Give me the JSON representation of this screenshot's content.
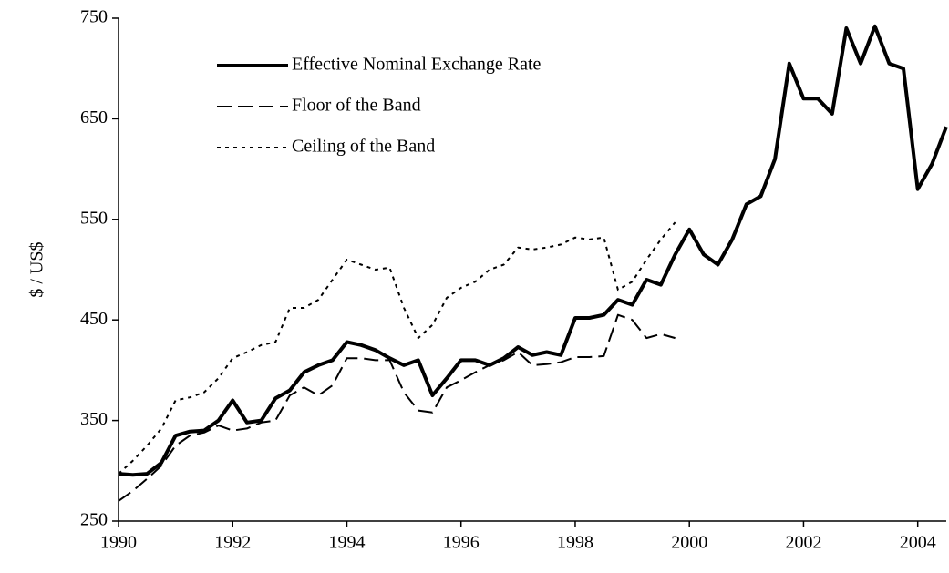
{
  "chart_data": {
    "type": "line",
    "y_label": "$ / US$",
    "x": [
      1990,
      1990.25,
      1990.5,
      1990.75,
      1991,
      1991.25,
      1991.5,
      1991.75,
      1992,
      1992.25,
      1992.5,
      1992.75,
      1993,
      1993.25,
      1993.5,
      1993.75,
      1994,
      1994.25,
      1994.5,
      1994.75,
      1995,
      1995.25,
      1995.5,
      1995.75,
      1996,
      1996.25,
      1996.5,
      1996.75,
      1997,
      1997.25,
      1997.5,
      1997.75,
      1998,
      1998.25,
      1998.5,
      1998.75,
      1999,
      1999.25,
      1999.5,
      1999.75,
      2000,
      2000.25,
      2000.5,
      2000.75,
      2001,
      2001.25,
      2001.5,
      2001.75,
      2002,
      2002.25,
      2002.5,
      2002.75,
      2003,
      2003.25,
      2003.5,
      2003.75,
      2004,
      2004.25,
      2004.5
    ],
    "series": [
      {
        "name": "Effective Nominal Exchange Rate",
        "color": "#000000",
        "style": "solid",
        "values": [
          297,
          296,
          297,
          308,
          335,
          339,
          340,
          350,
          370,
          348,
          350,
          372,
          380,
          398,
          405,
          410,
          428,
          425,
          420,
          412,
          405,
          410,
          375,
          392,
          410,
          410,
          405,
          412,
          423,
          415,
          418,
          415,
          452,
          452,
          455,
          470,
          465,
          490,
          485,
          515,
          540,
          515,
          505,
          530,
          565,
          573,
          610,
          705,
          670,
          670,
          655,
          740,
          705,
          742,
          705,
          700,
          580,
          605,
          642
        ]
      },
      {
        "name": "Floor of the Band",
        "color": "#000000",
        "style": "dashed",
        "values": [
          270,
          280,
          292,
          305,
          325,
          335,
          338,
          345,
          340,
          342,
          348,
          350,
          375,
          383,
          375,
          385,
          412,
          412,
          410,
          410,
          378,
          360,
          358,
          383,
          390,
          398,
          405,
          410,
          418,
          405,
          406,
          408,
          413,
          413,
          414,
          455,
          450,
          432,
          436,
          432,
          null,
          null,
          null,
          null,
          null,
          null,
          null,
          null,
          null,
          null,
          null,
          null,
          null,
          null,
          null,
          null,
          null,
          null,
          null
        ]
      },
      {
        "name": "Ceiling of the Band",
        "color": "#000000",
        "style": "dotted",
        "values": [
          297,
          310,
          325,
          342,
          370,
          373,
          378,
          392,
          412,
          418,
          425,
          428,
          462,
          462,
          470,
          490,
          510,
          505,
          500,
          502,
          462,
          432,
          445,
          472,
          482,
          488,
          500,
          505,
          522,
          520,
          522,
          525,
          532,
          530,
          532,
          480,
          488,
          510,
          530,
          547,
          null,
          null,
          null,
          null,
          null,
          null,
          null,
          null,
          null,
          null,
          null,
          null,
          null,
          null,
          null,
          null,
          null,
          null,
          null
        ]
      }
    ],
    "xlim": [
      1990,
      2004.5
    ],
    "xticks": [
      1990,
      1992,
      1994,
      1996,
      1998,
      2000,
      2002,
      2004
    ],
    "ylim": [
      250,
      750
    ],
    "yticks": [
      250,
      350,
      450,
      550,
      650,
      750
    ],
    "grid": false,
    "legend": "top-left"
  }
}
